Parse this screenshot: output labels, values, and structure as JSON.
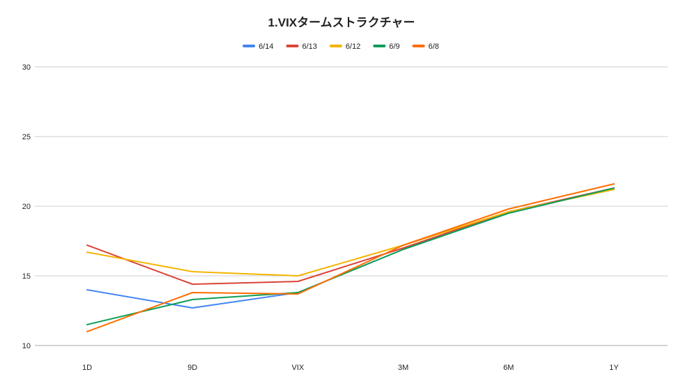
{
  "chart_data": {
    "type": "line",
    "title": "1.VIXタームストラクチャー",
    "xlabel": "",
    "ylabel": "",
    "categories": [
      "1D",
      "9D",
      "VIX",
      "3M",
      "6M",
      "1Y"
    ],
    "ylim": [
      10,
      30
    ],
    "yticks": [
      10,
      15,
      20,
      25,
      30
    ],
    "grid": true,
    "legend_position": "top",
    "series": [
      {
        "name": "6/14",
        "color": "#4285f4",
        "values": [
          14.0,
          12.7,
          13.8,
          16.9,
          19.5,
          21.3
        ]
      },
      {
        "name": "6/13",
        "color": "#db4437",
        "values": [
          17.2,
          14.4,
          14.6,
          17.0,
          19.6,
          21.3
        ]
      },
      {
        "name": "6/12",
        "color": "#f4b400",
        "values": [
          16.7,
          15.3,
          15.0,
          17.2,
          19.6,
          21.2
        ]
      },
      {
        "name": "6/9",
        "color": "#0f9d58",
        "values": [
          11.5,
          13.3,
          13.8,
          16.9,
          19.5,
          21.3
        ]
      },
      {
        "name": "6/8",
        "color": "#ff6d01",
        "values": [
          11.0,
          13.8,
          13.7,
          17.2,
          19.8,
          21.6
        ]
      }
    ]
  }
}
